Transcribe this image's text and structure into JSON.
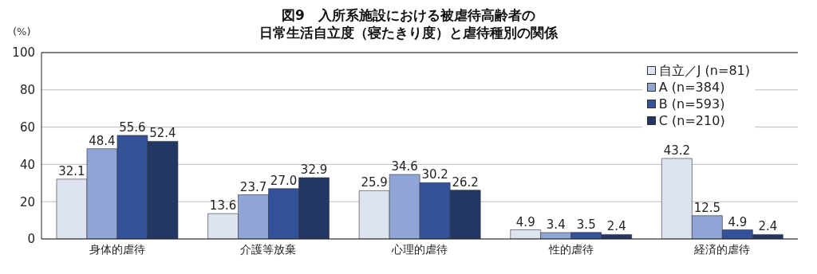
{
  "chart_data": {
    "type": "bar",
    "title": "図9　入所系施設における被虐待高齢者の",
    "subtitle": "日常生活自立度（寝たきり度）と虐待種別の関係",
    "ylabel": "(%)",
    "categories": [
      "身体的虐待",
      "介護等放棄",
      "心理的虐待",
      "性的虐待",
      "経済的虐待"
    ],
    "series": [
      {
        "name": "自立／J (n=81)",
        "color": "#dde3f0",
        "values": [
          32.1,
          13.6,
          25.9,
          4.9,
          43.2
        ],
        "value_labels": [
          "32.1",
          "13.6",
          "25.9",
          "4.9",
          "43.2"
        ]
      },
      {
        "name": "A (n=384)",
        "color": "#8fa5d6",
        "values": [
          48.4,
          23.7,
          34.6,
          3.4,
          12.5
        ],
        "value_labels": [
          "48.4",
          "23.7",
          "34.6",
          "3.4",
          "12.5"
        ]
      },
      {
        "name": "B (n=593)",
        "color": "#34529a",
        "values": [
          55.6,
          27.0,
          30.2,
          3.5,
          4.9
        ],
        "value_labels": [
          "55.6",
          "27.0",
          "30.2",
          "3.5",
          "4.9"
        ]
      },
      {
        "name": "C (n=210)",
        "color": "#223763",
        "values": [
          52.4,
          32.9,
          26.2,
          2.4,
          2.4
        ],
        "value_labels": [
          "52.4",
          "32.9",
          "26.2",
          "2.4",
          "2.4"
        ]
      }
    ],
    "ylim": [
      0,
      100
    ],
    "yticks": [
      0,
      20,
      40,
      60,
      80,
      100
    ],
    "grid": "y",
    "legend": "top right"
  }
}
